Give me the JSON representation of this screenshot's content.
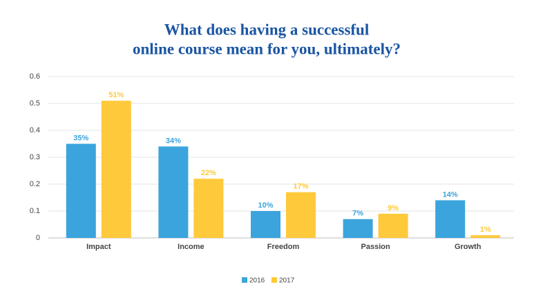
{
  "chart_data": {
    "type": "bar",
    "title": [
      "What does having a successful",
      "online course mean for you, ultimately?"
    ],
    "categories": [
      "Impact",
      "Income",
      "Freedom",
      "Passion",
      "Growth"
    ],
    "series": [
      {
        "name": "2016",
        "color": "#3ba4dc",
        "values": [
          0.35,
          0.34,
          0.1,
          0.07,
          0.14
        ],
        "value_labels": [
          "35%",
          "34%",
          "10%",
          "7%",
          "14%"
        ]
      },
      {
        "name": "2017",
        "color": "#fec93b",
        "values": [
          0.51,
          0.22,
          0.17,
          0.09,
          0.01
        ],
        "value_labels": [
          "51%",
          "22%",
          "17%",
          "9%",
          "1%"
        ]
      }
    ],
    "ylim": [
      0,
      0.6
    ],
    "yticks": [
      0,
      0.1,
      0.2,
      0.3,
      0.4,
      0.5,
      0.6
    ],
    "grid": true
  }
}
